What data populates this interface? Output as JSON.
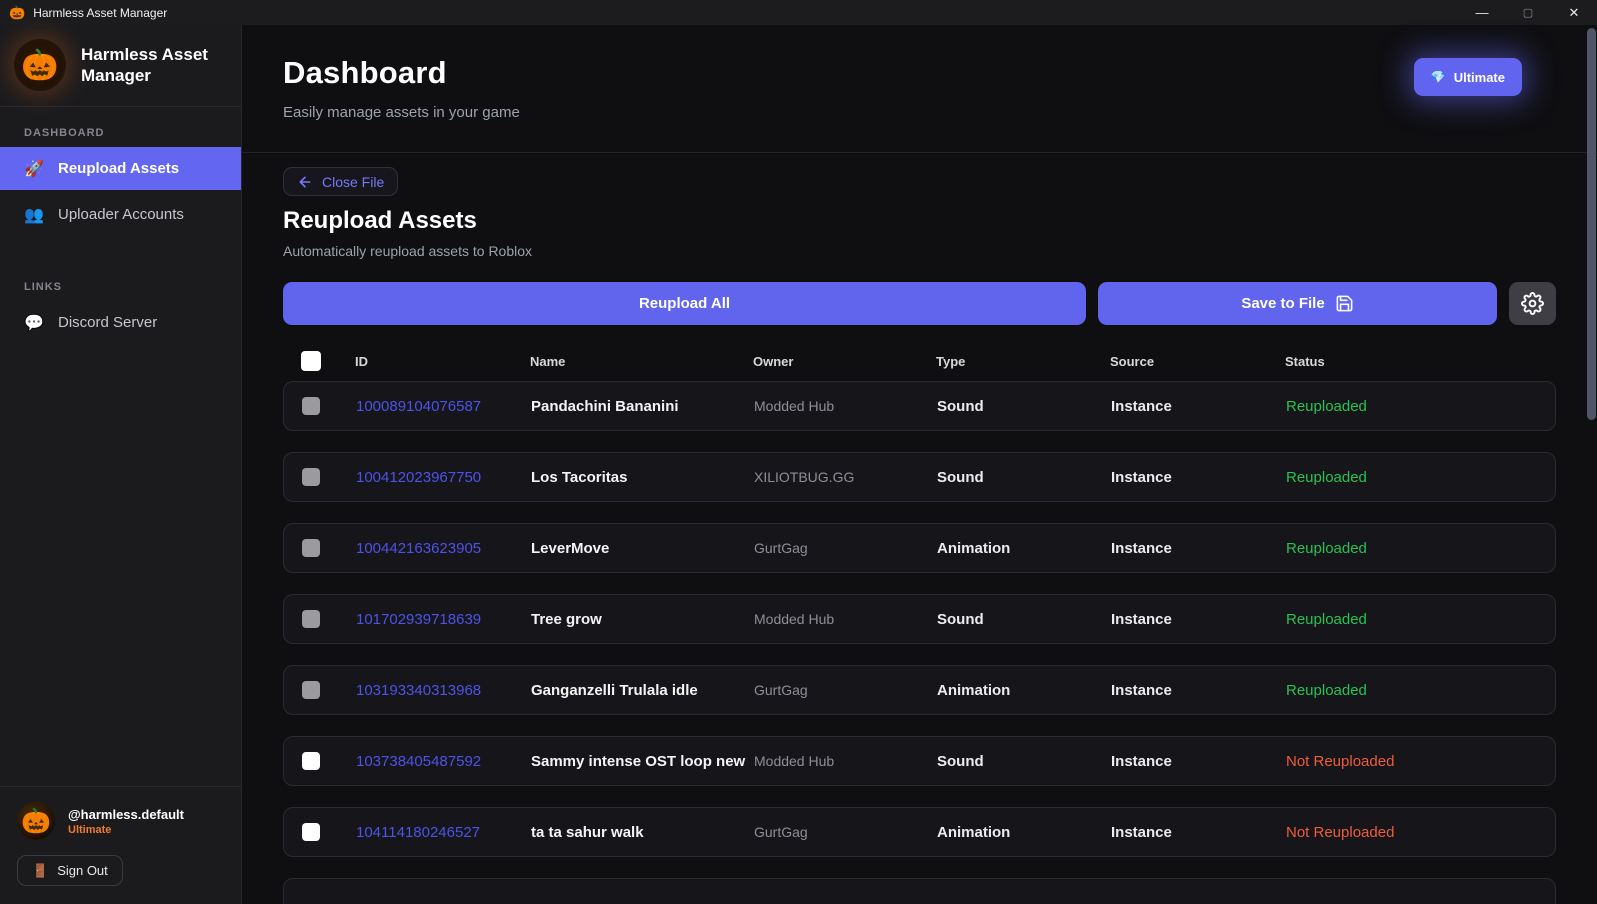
{
  "icons": {
    "pumpkin": "🎃",
    "rocket": "🚀",
    "people": "👥",
    "speech": "💬",
    "diamond": "💎",
    "door": "🚪"
  },
  "theme": {
    "accent": "#6366f1",
    "button_purple": "#6165ee",
    "status_reuploaded": "#27c252",
    "status_not_reuploaded": "#ed5c3b",
    "tier_orange": "#ee7b2f",
    "id_link": "#4d52e8"
  },
  "titlebar": {
    "title": "Harmless Asset Manager",
    "minimize_glyph": "—",
    "maximize_glyph": "▢",
    "close_glyph": "✕"
  },
  "sidebar": {
    "brand": "Harmless Asset Manager",
    "sections": [
      {
        "label": "DASHBOARD",
        "items": [
          {
            "label": "Reupload Assets",
            "icon": "rocket",
            "active": true
          },
          {
            "label": "Uploader Accounts",
            "icon": "people",
            "active": false
          }
        ]
      },
      {
        "label": "LINKS",
        "items": [
          {
            "label": "Discord Server",
            "icon": "speech",
            "active": false
          }
        ]
      }
    ],
    "user": {
      "handle": "@harmless.default",
      "tier": "Ultimate",
      "sign_out": "Sign Out"
    }
  },
  "header": {
    "title": "Dashboard",
    "subtitle": "Easily manage assets in your game",
    "ultimate_button": "Ultimate"
  },
  "reupload": {
    "close_file": "Close File",
    "title": "Reupload Assets",
    "subtitle": "Automatically reupload assets to Roblox",
    "reupload_all": "Reupload All",
    "save_to_file": "Save to File"
  },
  "table": {
    "headers": [
      "ID",
      "Name",
      "Owner",
      "Type",
      "Source",
      "Status"
    ],
    "rows": [
      {
        "id": "100089104076587",
        "name": "Pandachini Bananini",
        "owner": "Modded Hub",
        "type": "Sound",
        "source": "Instance",
        "status": "Reuploaded",
        "checkbox": "gray"
      },
      {
        "id": "100412023967750",
        "name": "Los Tacoritas",
        "owner": "XILIOTBUG.GG",
        "type": "Sound",
        "source": "Instance",
        "status": "Reuploaded",
        "checkbox": "gray"
      },
      {
        "id": "100442163623905",
        "name": "LeverMove",
        "owner": "GurtGag",
        "type": "Animation",
        "source": "Instance",
        "status": "Reuploaded",
        "checkbox": "gray"
      },
      {
        "id": "101702939718639",
        "name": "Tree grow",
        "owner": "Modded Hub",
        "type": "Sound",
        "source": "Instance",
        "status": "Reuploaded",
        "checkbox": "gray"
      },
      {
        "id": "103193340313968",
        "name": "Ganganzelli Trulala idle",
        "owner": "GurtGag",
        "type": "Animation",
        "source": "Instance",
        "status": "Reuploaded",
        "checkbox": "gray"
      },
      {
        "id": "103738405487592",
        "name": "Sammy intense OST loop new",
        "owner": "Modded Hub",
        "type": "Sound",
        "source": "Instance",
        "status": "Not Reuploaded",
        "checkbox": "white"
      },
      {
        "id": "104114180246527",
        "name": "ta ta sahur walk",
        "owner": "GurtGag",
        "type": "Animation",
        "source": "Instance",
        "status": "Not Reuploaded",
        "checkbox": "white"
      }
    ]
  }
}
